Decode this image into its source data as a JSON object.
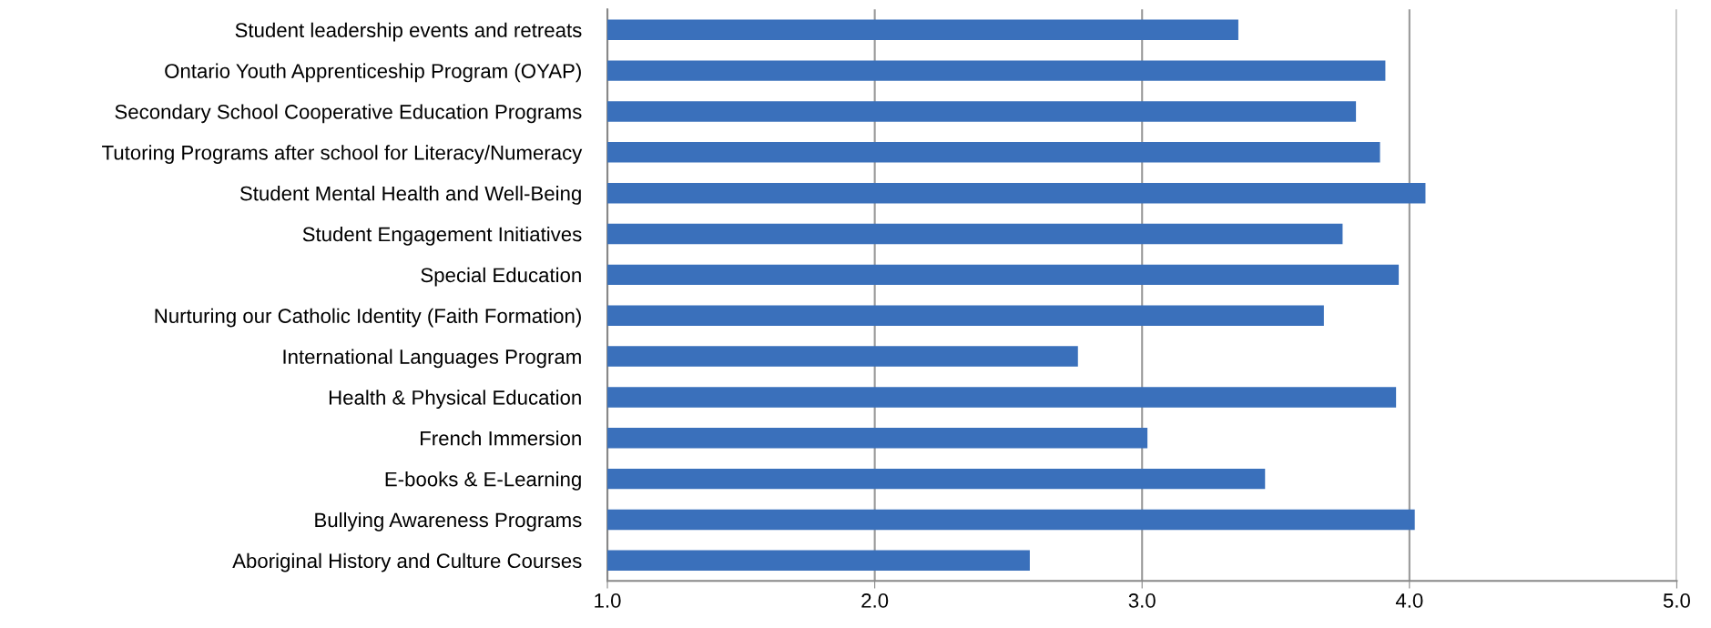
{
  "chart_data": {
    "type": "bar",
    "orientation": "horizontal",
    "categories": [
      "Student leadership events and retreats",
      "Ontario Youth Apprenticeship Program (OYAP)",
      "Secondary School Cooperative Education Programs",
      "Tutoring Programs after school for Literacy/Numeracy",
      "Student Mental Health and Well-Being",
      "Student Engagement Initiatives",
      "Special Education",
      "Nurturing our Catholic Identity (Faith Formation)",
      "International Languages Program",
      "Health & Physical Education",
      "French Immersion",
      "E-books & E-Learning",
      "Bullying Awareness Programs",
      "Aboriginal History and Culture Courses"
    ],
    "values": [
      3.36,
      3.91,
      3.8,
      3.89,
      4.06,
      3.75,
      3.96,
      3.68,
      2.76,
      3.95,
      3.02,
      3.46,
      4.02,
      2.58
    ],
    "color": "#3a70bb",
    "xlim": [
      1.0,
      5.0
    ],
    "xticks": [
      {
        "value": 1,
        "label": "1.0"
      },
      {
        "value": 2,
        "label": "2.0"
      },
      {
        "value": 3,
        "label": "3.0"
      },
      {
        "value": 4,
        "label": "4.0"
      },
      {
        "value": 5,
        "label": "5.0"
      }
    ],
    "grid": "x"
  }
}
